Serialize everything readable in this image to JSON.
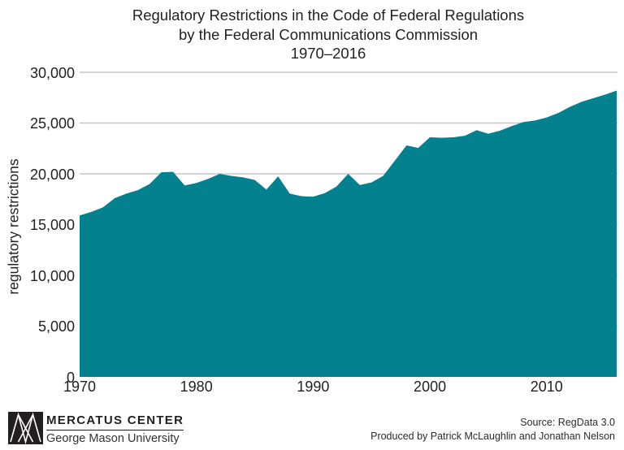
{
  "title": {
    "line1": "Regulatory Restrictions in the Code of Federal Regulations",
    "line2": "by the Federal Communications Commission",
    "line3": "1970–2016"
  },
  "y_axis": {
    "label": "regulatory restrictions",
    "ticks": [
      "0",
      "5,000",
      "10,000",
      "15,000",
      "20,000",
      "25,000",
      "30,000"
    ]
  },
  "x_axis": {
    "ticks": [
      "1970",
      "1980",
      "1990",
      "2000",
      "2010"
    ]
  },
  "chart_data": {
    "type": "area",
    "title": "Regulatory Restrictions in the Code of Federal Regulations by the Federal Communications Commission 1970–2016",
    "xlabel": "",
    "ylabel": "regulatory restrictions",
    "xlim": [
      1970,
      2016
    ],
    "ylim": [
      0,
      30000
    ],
    "grid": "horizontal",
    "legend": "none",
    "fill_color": "#03818F",
    "gridline_color": "#c6c6c6",
    "x": [
      1970,
      1971,
      1972,
      1973,
      1974,
      1975,
      1976,
      1977,
      1978,
      1979,
      1980,
      1981,
      1982,
      1983,
      1984,
      1985,
      1986,
      1987,
      1988,
      1989,
      1990,
      1991,
      1992,
      1993,
      1994,
      1995,
      1996,
      1997,
      1998,
      1999,
      2000,
      2001,
      2002,
      2003,
      2004,
      2005,
      2006,
      2007,
      2008,
      2009,
      2010,
      2011,
      2012,
      2013,
      2014,
      2015,
      2016
    ],
    "values": [
      15900,
      16250,
      16700,
      17600,
      18050,
      18400,
      19000,
      20150,
      20200,
      18850,
      19100,
      19500,
      20000,
      19800,
      19650,
      19400,
      18450,
      19750,
      18050,
      17800,
      17750,
      18100,
      18750,
      20000,
      18900,
      19150,
      19800,
      21300,
      22800,
      22550,
      23600,
      23550,
      23600,
      23750,
      24300,
      23950,
      24250,
      24700,
      25100,
      25250,
      25550,
      26000,
      26600,
      27100,
      27450,
      27800,
      28200
    ]
  },
  "footer": {
    "logo_title": "MERCATUS CENTER",
    "logo_subtitle": "George Mason University",
    "source_line1": "Source: RegData 3.0",
    "source_line2": "Produced by Patrick McLaughlin and Jonathan Nelson"
  },
  "colors": {
    "area_fill": "#03818F",
    "gridline": "#c6c6c6",
    "text": "#231f20"
  }
}
